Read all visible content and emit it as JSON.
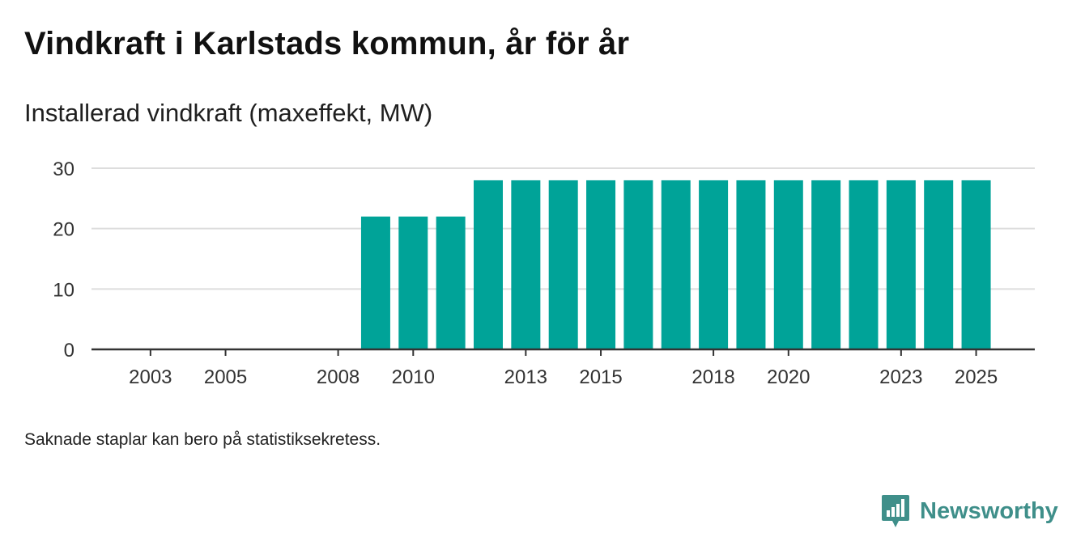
{
  "title": "Vindkraft i Karlstads kommun, år för år",
  "subtitle": "Installerad vindkraft (maxeffekt, MW)",
  "footnote": "Saknade staplar kan bero på statistiksekretess.",
  "brand": {
    "name": "Newsworthy",
    "icon": "newsworthy-logo-icon",
    "color": "#3f8f8a"
  },
  "colors": {
    "bar": "#00a398",
    "grid": "#dddddd",
    "axis": "#333333"
  },
  "chart_data": {
    "type": "bar",
    "title": "Vindkraft i Karlstads kommun, år för år",
    "ylabel": "Installerad vindkraft (maxeffekt, MW)",
    "xlabel": "",
    "categories": [
      2002,
      2003,
      2004,
      2005,
      2006,
      2007,
      2008,
      2009,
      2010,
      2011,
      2012,
      2013,
      2014,
      2015,
      2016,
      2017,
      2018,
      2019,
      2020,
      2021,
      2022,
      2023,
      2024,
      2025
    ],
    "values": [
      null,
      null,
      null,
      null,
      null,
      null,
      null,
      22,
      22,
      22,
      28,
      28,
      28,
      28,
      28,
      28,
      28,
      28,
      28,
      28,
      28,
      28,
      28,
      28
    ],
    "x_tick_labels": [
      "2003",
      "2005",
      "2008",
      "2010",
      "2013",
      "2015",
      "2018",
      "2020",
      "2023",
      "2025"
    ],
    "y_ticks": [
      0,
      10,
      20,
      30
    ],
    "ylim": [
      0,
      30
    ],
    "grid": true,
    "legend": "none"
  }
}
